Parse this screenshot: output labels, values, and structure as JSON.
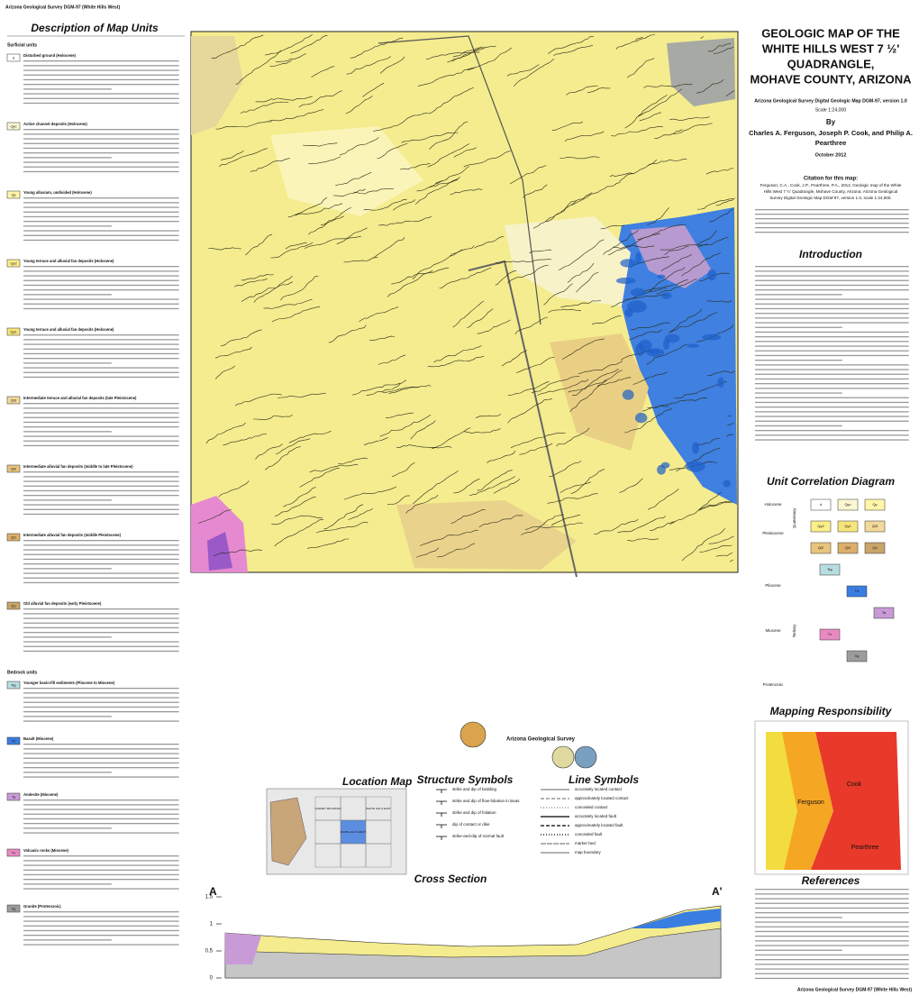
{
  "header": {
    "top_left": "Arizona Geological Survey DGM-97 (White Hills West)",
    "footer": "Arizona Geological Survey DGM-97 (White Hills West)"
  },
  "units_panel": {
    "title": "Description of Map Units",
    "sections": [
      "Surficial units",
      "Bedrock units"
    ],
    "units": [
      {
        "label": "d",
        "name": "Disturbed ground (Holocene)",
        "color": "#ffffff"
      },
      {
        "label": "Qyc",
        "name": "Active channel deposits (Holocene)",
        "color": "#fbf7d0"
      },
      {
        "label": "Qy",
        "name": "Young alluvium, undivided (Holocene)",
        "color": "#fff6a8"
      },
      {
        "label": "Qy2",
        "name": "Young terrace and alluvial fan deposits (Holocene)",
        "color": "#fcef8a"
      },
      {
        "label": "Qy1",
        "name": "Young terrace and alluvial fan deposits (Holocene)",
        "color": "#f6e57a"
      },
      {
        "label": "Qi3",
        "name": "Intermediate terrace and alluvial fan deposits (late Pleistocene)",
        "color": "#f2d99a"
      },
      {
        "label": "Qi2",
        "name": "Intermediate alluvial fan deposits (middle to late Pleistocene)",
        "color": "#e8c47c"
      },
      {
        "label": "Qi1",
        "name": "Intermediate alluvial fan deposits (middle Pleistocene)",
        "color": "#dcae6a"
      },
      {
        "label": "Qo",
        "name": "Old alluvial fan deposits (early Pleistocene)",
        "color": "#c9a56a"
      },
      {
        "label": "Tsy",
        "name": "Younger basin-fill sediments (Pliocene to Miocene)",
        "color": "#b8dde0"
      },
      {
        "label": "Tb",
        "name": "Basalt (Miocene)",
        "color": "#3a7de0"
      },
      {
        "label": "Ta",
        "name": "Andesite (Miocene)",
        "color": "#c89bd6"
      },
      {
        "label": "Tv",
        "name": "Volcanic rocks (Miocene)",
        "color": "#e88ac2"
      },
      {
        "label": "Xg",
        "name": "Granite (Proterozoic)",
        "color": "#9c9c9c"
      }
    ]
  },
  "title_block": {
    "lines": [
      "GEOLOGIC MAP OF THE",
      "WHITE HILLS WEST 7 ½'",
      "QUADRANGLE,",
      "MOHAVE COUNTY, ARIZONA"
    ],
    "series": "Arizona Geological Survey Digital Geologic Map DGM-97, version 1.0",
    "scale": "Scale 1:24,000",
    "by": "By",
    "authors": [
      "Charles A. Ferguson, Joseph P. Cook, and Philip A.",
      "Pearthree"
    ],
    "date": "October 2012"
  },
  "citation": {
    "heading": "Citation for this map:",
    "text": [
      "Ferguson, C.A., Cook, J.P., Pearthree, P.A., 2012, Geologic map of the White",
      "Hills West 7 ½' Quadrangle, Mohave County, Arizona: Arizona Geological",
      "Survey Digital Geologic Map DGM-97, version 1.0, scale 1:24,000."
    ]
  },
  "introduction": {
    "heading": "Introduction"
  },
  "correlation": {
    "heading": "Unit Correlation Diagram",
    "epochs": [
      "Holocene",
      "Pleistocene",
      "Pliocene",
      "Miocene",
      "Proterozoic"
    ],
    "periods": [
      "Quaternary",
      "Tertiary"
    ]
  },
  "responsibility": {
    "heading": "Mapping Responsibility",
    "mappers": [
      "Cook",
      "Ferguson",
      "Pearthree"
    ]
  },
  "references": {
    "heading": "References"
  },
  "location_map": {
    "heading": "Location Map",
    "quads": [
      "WHITE HILLS WEST",
      "WHITE HILLS EAST",
      "GARNET MOUNTAIN"
    ]
  },
  "structure_symbols": {
    "heading": "Structure Symbols",
    "items": [
      "strike and dip of bedding",
      "strike and dip of flow-foliation in lavas",
      "strike and dip of foliation",
      "dip of contact or dike",
      "strike-and-dip of normal fault"
    ]
  },
  "line_symbols": {
    "heading": "Line Symbols",
    "items": [
      "accurately located contact",
      "approximately located contact",
      "concealed contact",
      "accurately located fault",
      "approximately located fault",
      "concealed fault",
      "marker bed",
      "map boundary"
    ]
  },
  "survey": {
    "name": "Arizona Geological Survey"
  },
  "cross_section": {
    "heading": "Cross Section",
    "start": "A",
    "end": "A'",
    "yticks": [
      1.5,
      1,
      0.5,
      0
    ]
  }
}
